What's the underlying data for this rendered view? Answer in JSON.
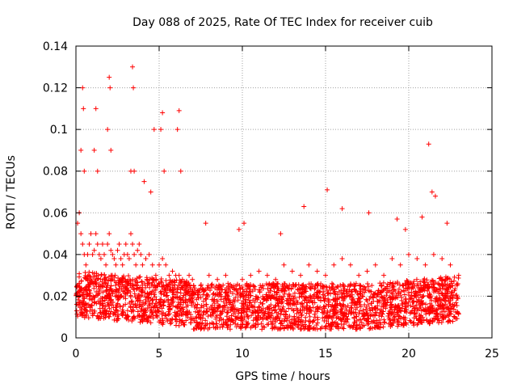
{
  "chart_data": {
    "type": "scatter",
    "title": "Day 088 of 2025, Rate Of TEC Index for receiver cuib",
    "xlabel": "GPS time / hours",
    "ylabel": "ROTI / TECUs",
    "xlim": [
      0,
      25
    ],
    "ylim": [
      0,
      0.14
    ],
    "x_ticks": [
      "0",
      "5",
      "10",
      "15",
      "20",
      "25"
    ],
    "y_ticks": [
      "0",
      "0.02",
      "0.04",
      "0.06",
      "0.08",
      "0.1",
      "0.12",
      "0.14"
    ],
    "x_tick_values": [
      0,
      5,
      10,
      15,
      20,
      25
    ],
    "y_tick_values": [
      0,
      0.02,
      0.04,
      0.06,
      0.08,
      0.1,
      0.12,
      0.14
    ],
    "grid": true,
    "marker": "+",
    "color": "#ff0000",
    "series": [
      {
        "x": [
          0.1,
          0.2,
          0.3,
          0.4,
          0.5,
          0.6,
          0.7,
          0.8,
          0.9,
          1.0,
          1.1,
          1.2,
          1.3,
          1.4,
          1.5,
          1.6,
          1.7,
          1.8,
          1.9,
          2.0,
          2.1,
          2.2,
          2.3,
          2.4,
          2.5,
          2.6,
          2.7,
          2.8,
          2.9,
          3.0,
          3.1,
          3.2,
          3.3,
          3.4,
          3.5,
          3.6,
          3.7,
          3.8,
          3.9,
          4.0,
          4.2,
          4.4,
          4.6,
          4.8,
          5.0,
          5.2,
          5.4,
          5.6,
          5.8,
          6.0,
          6.2,
          6.4,
          6.6,
          6.8,
          7.0,
          7.5,
          8.0,
          8.5,
          9.0,
          9.5,
          10.0,
          10.5,
          11.0,
          11.5,
          12.0,
          12.5,
          13.0,
          13.5,
          14.0,
          14.5,
          15.0,
          15.5,
          16.0,
          16.5,
          17.0,
          17.5,
          18.0,
          18.5,
          19.0,
          19.5,
          20.0,
          20.5,
          21.0,
          21.5,
          22.0,
          22.5,
          23.0,
          0.3,
          0.5,
          1.1,
          1.3,
          1.9,
          2.1,
          3.3,
          3.5,
          4.1,
          4.5,
          5.1,
          5.3,
          6.1,
          6.3,
          7.8,
          9.8,
          10.1,
          12.3,
          13.7,
          15.1,
          16.0,
          17.6,
          19.3,
          19.8,
          20.8,
          21.2,
          21.4,
          21.6,
          22.3,
          0.4,
          0.45,
          1.2,
          2.0,
          2.05,
          3.4,
          3.45,
          4.7,
          5.2,
          6.2
        ],
        "y": [
          0.055,
          0.06,
          0.05,
          0.045,
          0.04,
          0.035,
          0.04,
          0.045,
          0.05,
          0.04,
          0.042,
          0.05,
          0.045,
          0.04,
          0.038,
          0.045,
          0.04,
          0.035,
          0.045,
          0.05,
          0.042,
          0.04,
          0.038,
          0.035,
          0.042,
          0.045,
          0.038,
          0.035,
          0.04,
          0.045,
          0.04,
          0.038,
          0.05,
          0.045,
          0.04,
          0.035,
          0.042,
          0.045,
          0.04,
          0.035,
          0.038,
          0.04,
          0.035,
          0.03,
          0.035,
          0.038,
          0.035,
          0.03,
          0.032,
          0.03,
          0.03,
          0.028,
          0.025,
          0.03,
          0.028,
          0.025,
          0.03,
          0.028,
          0.03,
          0.025,
          0.028,
          0.03,
          0.032,
          0.03,
          0.028,
          0.035,
          0.032,
          0.03,
          0.035,
          0.032,
          0.03,
          0.035,
          0.038,
          0.035,
          0.03,
          0.032,
          0.035,
          0.03,
          0.038,
          0.035,
          0.04,
          0.038,
          0.035,
          0.04,
          0.038,
          0.035,
          0.03,
          0.09,
          0.08,
          0.09,
          0.08,
          0.1,
          0.09,
          0.08,
          0.08,
          0.075,
          0.07,
          0.1,
          0.08,
          0.1,
          0.08,
          0.055,
          0.052,
          0.055,
          0.05,
          0.063,
          0.071,
          0.062,
          0.06,
          0.057,
          0.052,
          0.058,
          0.093,
          0.07,
          0.068,
          0.055,
          0.12,
          0.11,
          0.11,
          0.125,
          0.12,
          0.13,
          0.12,
          0.1,
          0.108,
          0.109
        ]
      }
    ]
  }
}
